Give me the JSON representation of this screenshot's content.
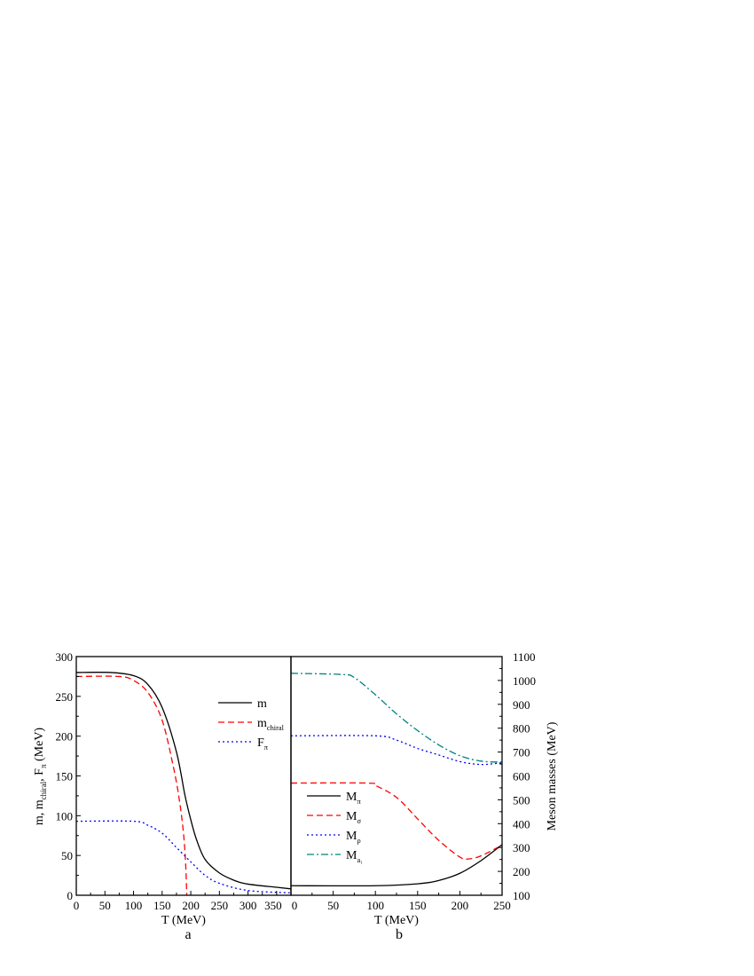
{
  "chart_data": [
    {
      "type": "line",
      "panel_label": "a",
      "xlabel": "T (MeV)",
      "ylabel_parts": [
        "m, m",
        "chiral",
        ", F",
        "π",
        " (MeV)"
      ],
      "xlim": [
        0,
        375
      ],
      "ylim": [
        0,
        300
      ],
      "xticks": [
        0,
        50,
        100,
        150,
        200,
        250,
        300,
        350
      ],
      "yticks": [
        0,
        50,
        100,
        150,
        200,
        250,
        300
      ],
      "grid": false,
      "legend_placement": "top-right",
      "series": [
        {
          "name": "m",
          "name_sub": "",
          "color": "#000000",
          "dash": "solid",
          "x": [
            0,
            60,
            100,
            125,
            150,
            175,
            190,
            200,
            210,
            225,
            250,
            275,
            300,
            350,
            375
          ],
          "y": [
            280,
            280,
            276,
            265,
            236,
            180,
            125,
            95,
            70,
            45,
            28,
            19,
            14,
            10,
            8
          ]
        },
        {
          "name": "m",
          "name_sub": "chiral",
          "color": "#ff0000",
          "dash": "dashed",
          "x": [
            0,
            75,
            100,
            125,
            150,
            170,
            180,
            187,
            191,
            193
          ],
          "y": [
            275,
            275,
            270,
            255,
            220,
            160,
            120,
            80,
            40,
            0
          ]
        },
        {
          "name": "F",
          "name_sub": "π",
          "color": "#0000ff",
          "dash": "dotted",
          "x": [
            0,
            100,
            125,
            150,
            175,
            200,
            225,
            250,
            300,
            375
          ],
          "y": [
            93,
            93,
            88,
            78,
            60,
            42,
            25,
            15,
            6,
            3
          ]
        }
      ]
    },
    {
      "type": "line",
      "panel_label": "b",
      "xlabel": "T (MeV)",
      "ylabel": "Meson masses (MeV)",
      "xlim": [
        0,
        250
      ],
      "ylim": [
        100,
        1100
      ],
      "xticks": [
        0,
        50,
        100,
        150,
        200,
        250
      ],
      "yticks": [
        100,
        200,
        300,
        400,
        500,
        600,
        700,
        800,
        900,
        1000,
        1100
      ],
      "grid": false,
      "legend_placement": "bottom-left",
      "series": [
        {
          "name": "M",
          "name_sub": "π",
          "color": "#000000",
          "dash": "solid",
          "x": [
            0,
            100,
            150,
            175,
            200,
            225,
            250
          ],
          "y": [
            140,
            140,
            148,
            162,
            192,
            245,
            312
          ]
        },
        {
          "name": "M",
          "name_sub": "σ",
          "color": "#ff0000",
          "dash": "dashed",
          "x": [
            0,
            90,
            100,
            125,
            150,
            175,
            200,
            210,
            225,
            250
          ],
          "y": [
            570,
            570,
            560,
            510,
            420,
            330,
            260,
            252,
            265,
            310
          ]
        },
        {
          "name": "M",
          "name_sub": "ρ",
          "color": "#0000ff",
          "dash": "dotted",
          "x": [
            0,
            100,
            125,
            150,
            175,
            200,
            225,
            250
          ],
          "y": [
            768,
            768,
            750,
            715,
            688,
            660,
            648,
            655
          ]
        },
        {
          "name": "M",
          "name_sub": "a₁",
          "color": "#008080",
          "dash": "dashdot",
          "x": [
            0,
            60,
            75,
            100,
            125,
            150,
            175,
            200,
            225,
            250
          ],
          "y": [
            1030,
            1025,
            1012,
            940,
            860,
            790,
            730,
            685,
            662,
            658
          ]
        }
      ]
    }
  ]
}
